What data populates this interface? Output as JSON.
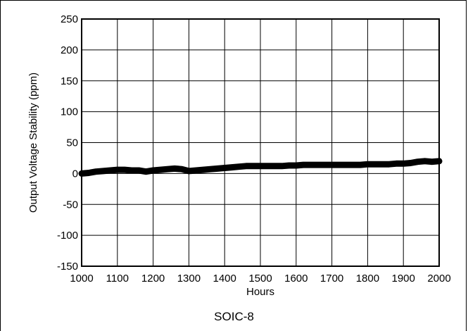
{
  "caption": "SOIC-8",
  "chart_data": {
    "type": "line",
    "xlabel": "Hours",
    "ylabel": "Output Voltage Stability (ppm)",
    "xlim": [
      1000,
      2000
    ],
    "ylim": [
      -150,
      250
    ],
    "xticks": [
      1000,
      1100,
      1200,
      1300,
      1400,
      1500,
      1600,
      1700,
      1800,
      1900,
      2000
    ],
    "yticks": [
      -150,
      -100,
      -50,
      0,
      50,
      100,
      150,
      200,
      250
    ],
    "grid": true,
    "line_color": "#000000",
    "series": [
      {
        "x": [
          1000,
          1020,
          1040,
          1060,
          1080,
          1100,
          1120,
          1140,
          1160,
          1180,
          1200,
          1220,
          1240,
          1260,
          1280,
          1300,
          1320,
          1340,
          1360,
          1380,
          1400,
          1420,
          1440,
          1460,
          1480,
          1500,
          1520,
          1540,
          1560,
          1580,
          1600,
          1620,
          1640,
          1660,
          1680,
          1700,
          1720,
          1740,
          1760,
          1780,
          1800,
          1820,
          1840,
          1860,
          1880,
          1900,
          1920,
          1940,
          1960,
          1980,
          2000
        ],
        "values": [
          0,
          1,
          3,
          4,
          5,
          6,
          6,
          5,
          5,
          3,
          5,
          6,
          7,
          8,
          7,
          4,
          5,
          6,
          7,
          8,
          9,
          10,
          11,
          12,
          12,
          12,
          12,
          12,
          12,
          13,
          13,
          14,
          14,
          14,
          14,
          14,
          14,
          14,
          14,
          14,
          15,
          15,
          15,
          15,
          16,
          16,
          17,
          19,
          20,
          19,
          20
        ]
      }
    ]
  }
}
